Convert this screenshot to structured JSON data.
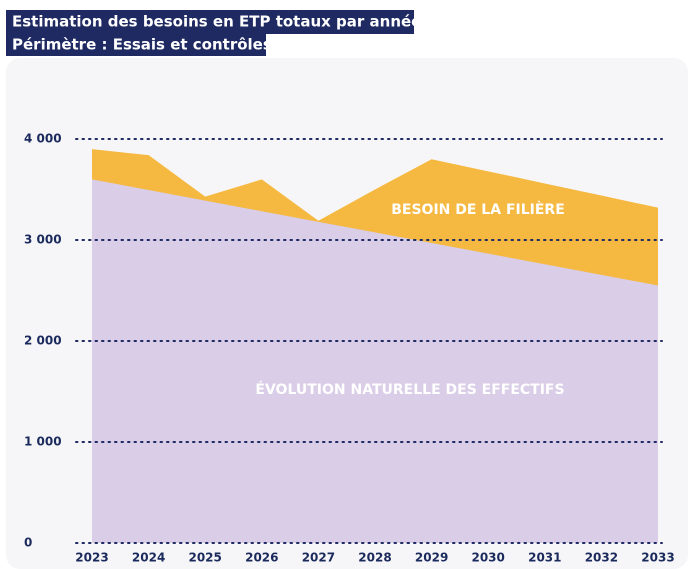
{
  "chart_data": {
    "type": "area",
    "title": "Estimation des besoins en ETP totaux par année",
    "subtitle": "Périmètre : Essais et contrôles",
    "categories": [
      "2023",
      "2024",
      "2025",
      "2026",
      "2027",
      "2028",
      "2029",
      "2030",
      "2031",
      "2032",
      "2033"
    ],
    "series": [
      {
        "name": "BESOIN DE LA FILIÈRE",
        "color": "#f5b941",
        "values": [
          3900,
          3840,
          3430,
          3600,
          3190,
          3500,
          3800,
          3680,
          3560,
          3440,
          3320
        ]
      },
      {
        "name": "ÉVOLUTION NATURELLE DES EFFECTIFS",
        "color": "#d9cde7",
        "values": [
          3600,
          3495,
          3390,
          3285,
          3180,
          3075,
          2970,
          2865,
          2760,
          2655,
          2550
        ]
      }
    ],
    "ylim": [
      0,
      4000
    ],
    "yticks": [
      0,
      {
        "value": 1000,
        "label": "1 000"
      },
      {
        "value": 2000,
        "label": "2 000"
      },
      {
        "value": 3000,
        "label": "3 000"
      },
      {
        "value": 4000,
        "label": "4 000"
      }
    ],
    "grid": true
  }
}
